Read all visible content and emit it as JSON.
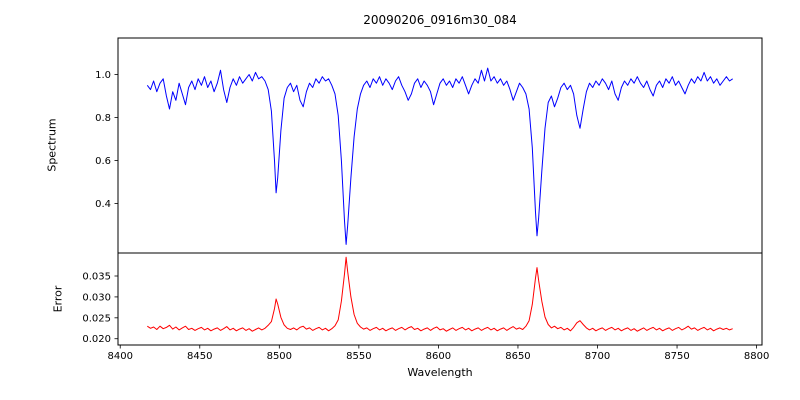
{
  "chart_data": {
    "type": "line",
    "title": "20090206_0916m30_084",
    "xlabel": "Wavelength",
    "xlim": [
      8398.6,
      8803.4
    ],
    "xticks": [
      8400,
      8450,
      8500,
      8550,
      8600,
      8650,
      8700,
      8750,
      8800
    ],
    "grid": false,
    "legend": false,
    "subplots": [
      {
        "name": "spectrum",
        "ylabel": "Spectrum",
        "color": "#0000ff",
        "ylim": [
          0.17,
          1.17
        ],
        "yticks": [
          0.4,
          0.6,
          0.8,
          1.0
        ],
        "ytick_labels": [
          "0.4",
          "0.6",
          "0.8",
          "1.0"
        ],
        "series_key": "spectrum"
      },
      {
        "name": "error",
        "ylabel": "Error",
        "color": "#ff0000",
        "ylim": [
          0.0185,
          0.0405
        ],
        "yticks": [
          0.02,
          0.025,
          0.03,
          0.035
        ],
        "ytick_labels": [
          "0.020",
          "0.025",
          "0.030",
          "0.035"
        ],
        "series_key": "error"
      }
    ],
    "x": [
      8417,
      8419,
      8421,
      8423,
      8425,
      8427,
      8429,
      8431,
      8433,
      8435,
      8437,
      8439,
      8441,
      8443,
      8445,
      8447,
      8449,
      8451,
      8453,
      8455,
      8457,
      8459,
      8461,
      8463,
      8465,
      8467,
      8469,
      8471,
      8473,
      8475,
      8477,
      8479,
      8481,
      8483,
      8485,
      8487,
      8489,
      8491,
      8493,
      8495,
      8497,
      8498,
      8499,
      8501,
      8503,
      8505,
      8507,
      8509,
      8511,
      8513,
      8515,
      8517,
      8519,
      8521,
      8523,
      8525,
      8527,
      8529,
      8531,
      8533,
      8535,
      8537,
      8539,
      8541,
      8542,
      8543,
      8545,
      8547,
      8549,
      8551,
      8553,
      8555,
      8557,
      8559,
      8561,
      8563,
      8565,
      8567,
      8569,
      8571,
      8573,
      8575,
      8577,
      8579,
      8581,
      8583,
      8585,
      8587,
      8589,
      8591,
      8593,
      8595,
      8597,
      8599,
      8601,
      8603,
      8605,
      8607,
      8609,
      8611,
      8613,
      8615,
      8617,
      8619,
      8621,
      8623,
      8625,
      8627,
      8629,
      8631,
      8633,
      8635,
      8637,
      8639,
      8641,
      8643,
      8645,
      8647,
      8649,
      8651,
      8653,
      8655,
      8657,
      8659,
      8661,
      8662,
      8663,
      8665,
      8667,
      8669,
      8671,
      8673,
      8675,
      8677,
      8679,
      8681,
      8683,
      8685,
      8687,
      8689,
      8691,
      8693,
      8695,
      8697,
      8699,
      8701,
      8703,
      8705,
      8707,
      8709,
      8711,
      8713,
      8715,
      8717,
      8719,
      8721,
      8723,
      8725,
      8727,
      8729,
      8731,
      8733,
      8735,
      8737,
      8739,
      8741,
      8743,
      8745,
      8747,
      8749,
      8751,
      8753,
      8755,
      8757,
      8759,
      8761,
      8763,
      8765,
      8767,
      8769,
      8771,
      8773,
      8775,
      8777,
      8779,
      8781,
      8783,
      8785
    ],
    "spectrum": [
      0.95,
      0.93,
      0.97,
      0.92,
      0.96,
      0.98,
      0.9,
      0.84,
      0.92,
      0.88,
      0.96,
      0.91,
      0.86,
      0.94,
      0.97,
      0.93,
      0.98,
      0.95,
      0.99,
      0.94,
      0.97,
      0.92,
      0.96,
      1.02,
      0.93,
      0.87,
      0.94,
      0.98,
      0.95,
      0.99,
      0.96,
      0.98,
      1.0,
      0.97,
      1.01,
      0.98,
      0.99,
      0.97,
      0.93,
      0.83,
      0.6,
      0.45,
      0.52,
      0.74,
      0.89,
      0.94,
      0.96,
      0.92,
      0.95,
      0.88,
      0.85,
      0.92,
      0.96,
      0.94,
      0.98,
      0.96,
      0.99,
      0.97,
      0.98,
      0.95,
      0.91,
      0.81,
      0.6,
      0.32,
      0.21,
      0.3,
      0.52,
      0.71,
      0.84,
      0.91,
      0.95,
      0.97,
      0.94,
      0.98,
      0.96,
      0.99,
      0.95,
      0.98,
      0.96,
      0.93,
      0.97,
      0.99,
      0.95,
      0.92,
      0.88,
      0.91,
      0.96,
      0.98,
      0.94,
      0.97,
      0.95,
      0.92,
      0.86,
      0.91,
      0.96,
      0.98,
      0.95,
      0.97,
      0.94,
      0.98,
      0.96,
      0.99,
      0.95,
      0.91,
      0.95,
      0.98,
      0.96,
      1.02,
      0.97,
      1.03,
      0.97,
      0.99,
      0.96,
      0.98,
      0.95,
      0.97,
      0.93,
      0.88,
      0.92,
      0.96,
      0.94,
      0.91,
      0.84,
      0.66,
      0.36,
      0.25,
      0.33,
      0.55,
      0.75,
      0.87,
      0.9,
      0.85,
      0.89,
      0.94,
      0.96,
      0.93,
      0.95,
      0.91,
      0.81,
      0.75,
      0.84,
      0.92,
      0.96,
      0.94,
      0.97,
      0.95,
      0.98,
      0.96,
      0.93,
      0.97,
      0.91,
      0.88,
      0.94,
      0.97,
      0.95,
      0.98,
      0.96,
      0.99,
      0.96,
      0.94,
      0.97,
      0.93,
      0.9,
      0.95,
      0.97,
      0.94,
      0.98,
      0.96,
      0.99,
      0.95,
      0.97,
      0.94,
      0.91,
      0.95,
      0.98,
      0.96,
      0.99,
      0.97,
      1.01,
      0.97,
      0.99,
      0.96,
      0.98,
      0.95,
      0.97,
      0.99,
      0.97,
      0.98
    ],
    "error": [
      0.023,
      0.0225,
      0.0228,
      0.0222,
      0.023,
      0.0224,
      0.0227,
      0.0232,
      0.0223,
      0.0228,
      0.0221,
      0.0226,
      0.023,
      0.0222,
      0.0225,
      0.022,
      0.0224,
      0.0227,
      0.0221,
      0.0225,
      0.0219,
      0.0223,
      0.0226,
      0.022,
      0.0224,
      0.0229,
      0.0221,
      0.0225,
      0.0219,
      0.0223,
      0.0226,
      0.022,
      0.0224,
      0.0218,
      0.0222,
      0.0226,
      0.0221,
      0.0225,
      0.0232,
      0.0241,
      0.0272,
      0.0295,
      0.0283,
      0.0251,
      0.0233,
      0.0225,
      0.0222,
      0.0226,
      0.0221,
      0.0227,
      0.023,
      0.0223,
      0.0226,
      0.022,
      0.0224,
      0.0227,
      0.0221,
      0.0225,
      0.0219,
      0.0224,
      0.0231,
      0.0245,
      0.029,
      0.0355,
      0.0395,
      0.036,
      0.03,
      0.0258,
      0.0237,
      0.0228,
      0.0223,
      0.0226,
      0.022,
      0.0224,
      0.0227,
      0.0221,
      0.0225,
      0.0219,
      0.0223,
      0.0226,
      0.022,
      0.0224,
      0.0227,
      0.0221,
      0.0226,
      0.0229,
      0.0222,
      0.0225,
      0.0219,
      0.0223,
      0.0226,
      0.022,
      0.0225,
      0.0228,
      0.0221,
      0.0224,
      0.0218,
      0.0222,
      0.0226,
      0.022,
      0.0224,
      0.0227,
      0.0221,
      0.0225,
      0.0219,
      0.0223,
      0.0226,
      0.022,
      0.0224,
      0.0227,
      0.0221,
      0.0225,
      0.0219,
      0.0223,
      0.0226,
      0.022,
      0.0225,
      0.0229,
      0.0223,
      0.0226,
      0.0222,
      0.023,
      0.0243,
      0.0282,
      0.0345,
      0.037,
      0.034,
      0.029,
      0.0252,
      0.0234,
      0.0226,
      0.023,
      0.0224,
      0.0227,
      0.0221,
      0.0225,
      0.0219,
      0.0227,
      0.0238,
      0.0243,
      0.0234,
      0.0226,
      0.0221,
      0.0225,
      0.0219,
      0.0223,
      0.0226,
      0.022,
      0.0224,
      0.0227,
      0.0221,
      0.0225,
      0.0219,
      0.0223,
      0.0226,
      0.022,
      0.0224,
      0.0218,
      0.0222,
      0.0226,
      0.022,
      0.0224,
      0.0227,
      0.0221,
      0.0225,
      0.0219,
      0.0223,
      0.0226,
      0.022,
      0.0224,
      0.0227,
      0.0221,
      0.0225,
      0.023,
      0.0223,
      0.0226,
      0.022,
      0.0224,
      0.0227,
      0.0221,
      0.0225,
      0.0219,
      0.0223,
      0.0226,
      0.0222,
      0.0225,
      0.0221,
      0.0224
    ]
  }
}
